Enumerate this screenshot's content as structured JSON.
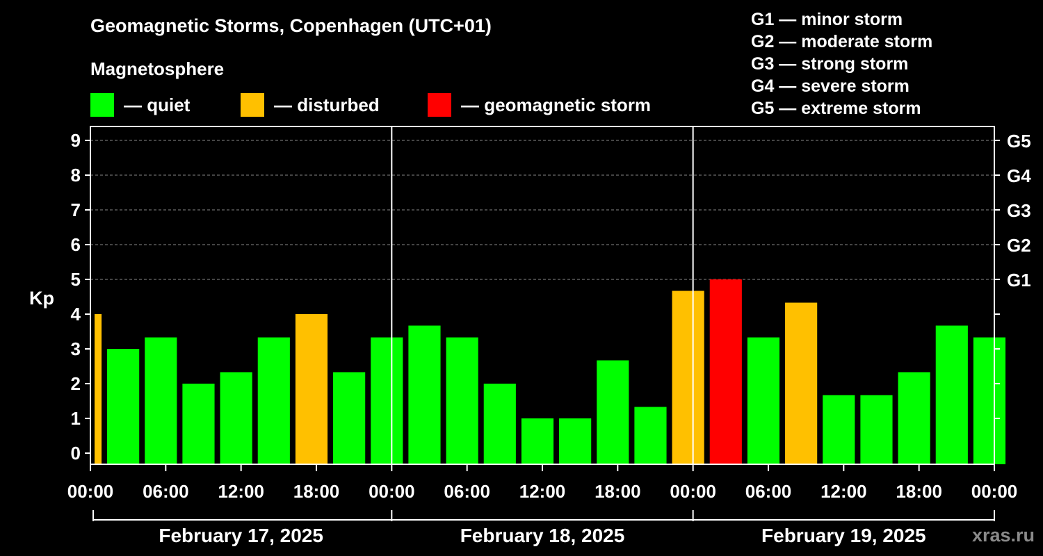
{
  "title": "Geomagnetic Storms, Copenhagen (UTC+01)",
  "subtitle": "Magnetosphere",
  "legend": [
    {
      "label": "— quiet",
      "color": "#00ff00"
    },
    {
      "label": "— disturbed",
      "color": "#ffc000"
    },
    {
      "label": "— geomagnetic storm",
      "color": "#ff0000"
    }
  ],
  "storm_scale": [
    "G1 — minor storm",
    "G2 — moderate storm",
    "G3 — strong storm",
    "G4 — severe storm",
    "G5 — extreme storm"
  ],
  "watermark": "xras.ru",
  "chart_data": {
    "type": "bar",
    "ylabel": "Kp",
    "ylim": [
      0,
      9
    ],
    "yticks": [
      "0",
      "1",
      "2",
      "3",
      "4",
      "5",
      "6",
      "7",
      "8",
      "9"
    ],
    "right_ticks": [
      {
        "value": 5,
        "label": "G1"
      },
      {
        "value": 6,
        "label": "G2"
      },
      {
        "value": 7,
        "label": "G3"
      },
      {
        "value": 8,
        "label": "G4"
      },
      {
        "value": 9,
        "label": "G5"
      }
    ],
    "grid": "dashed horizontal at Kp 5–9",
    "xticks": [
      "00:00",
      "06:00",
      "12:00",
      "18:00",
      "00:00",
      "06:00",
      "12:00",
      "18:00",
      "00:00",
      "06:00",
      "12:00",
      "18:00",
      "00:00"
    ],
    "days": [
      "February 17, 2025",
      "February 18, 2025",
      "February 19, 2025"
    ],
    "interval_hours": 3,
    "first_bar_partial": true,
    "values": [
      4.0,
      3.0,
      3.33,
      2.0,
      2.33,
      3.33,
      4.0,
      2.33,
      3.33,
      3.67,
      3.33,
      2.0,
      1.0,
      1.0,
      2.67,
      1.33,
      4.67,
      5.0,
      3.33,
      4.33,
      1.67,
      1.67,
      2.33,
      3.67,
      3.33
    ],
    "levels": [
      "disturbed",
      "quiet",
      "quiet",
      "quiet",
      "quiet",
      "quiet",
      "disturbed",
      "quiet",
      "quiet",
      "quiet",
      "quiet",
      "quiet",
      "quiet",
      "quiet",
      "quiet",
      "quiet",
      "disturbed",
      "storm",
      "quiet",
      "disturbed",
      "quiet",
      "quiet",
      "quiet",
      "quiet",
      "quiet"
    ],
    "colors": {
      "quiet": "#00ff00",
      "disturbed": "#ffc000",
      "storm": "#ff0000"
    }
  }
}
